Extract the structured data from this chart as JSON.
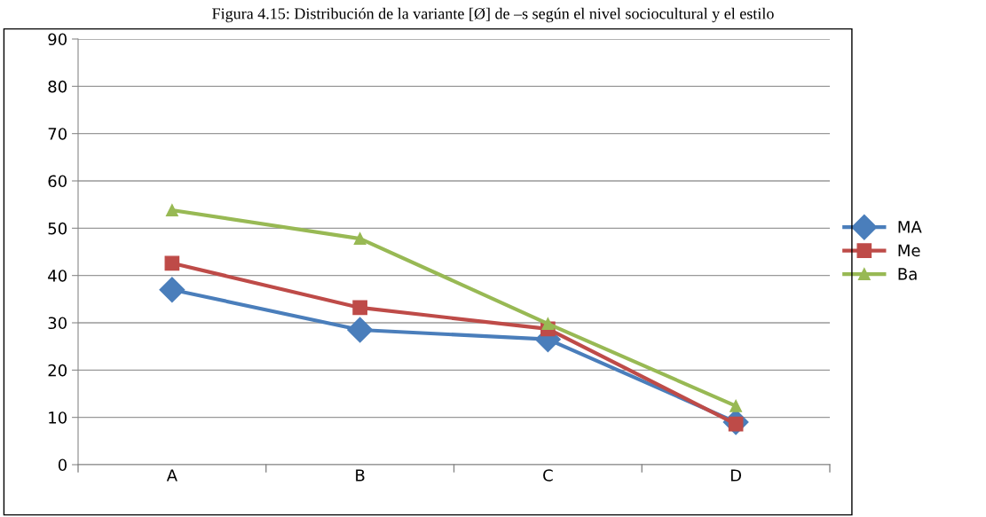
{
  "chart_data": {
    "type": "line",
    "title": "Figura 4.15: Distribución de la variante [Ø] de –s según el nivel sociocultural y el estilo",
    "categories": [
      "A",
      "B",
      "C",
      "D"
    ],
    "series": [
      {
        "name": "MA",
        "color": "#4a7ebb",
        "marker": "diamond",
        "values": [
          37,
          28.5,
          26.5,
          9
        ]
      },
      {
        "name": "Me",
        "color": "#be4b48",
        "marker": "square",
        "values": [
          42.6,
          33.2,
          28.7,
          8.6
        ]
      },
      {
        "name": "Ba",
        "color": "#98b954",
        "marker": "triangle",
        "values": [
          53.8,
          47.8,
          29.8,
          12.4
        ]
      }
    ],
    "ylim": [
      0,
      90
    ],
    "yticks": [
      0,
      10,
      20,
      30,
      40,
      50,
      60,
      70,
      80,
      90
    ],
    "grid": "y",
    "legend": "right"
  }
}
